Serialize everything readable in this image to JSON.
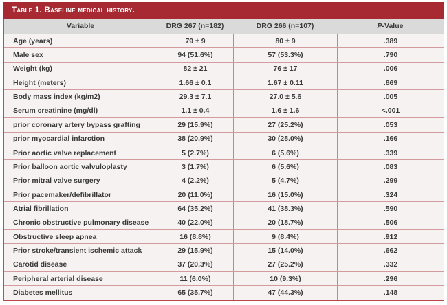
{
  "title": "Table 1. Baseline medical history.",
  "header": {
    "variable": "Variable",
    "drg267": "DRG 267 (n=182)",
    "drg266": "DRG 266 (n=107)",
    "pvalue_prefix": "P",
    "pvalue_suffix": "-Value"
  },
  "chart_data": {
    "type": "table",
    "title": "Table 1. Baseline medical history.",
    "columns": [
      "Variable",
      "DRG 267 (n=182)",
      "DRG 266 (n=107)",
      "P-Value"
    ],
    "rows": [
      {
        "variable": "Age (years)",
        "drg267": "79 ± 9",
        "drg266": "80 ± 9",
        "p": ".389"
      },
      {
        "variable": "Male sex",
        "drg267": "94 (51.6%)",
        "drg266": "57 (53.3%)",
        "p": ".790"
      },
      {
        "variable": "Weight (kg)",
        "drg267": "82 ± 21",
        "drg266": "76 ± 17",
        "p": ".006"
      },
      {
        "variable": "Height (meters)",
        "drg267": "1.66 ± 0.1",
        "drg266": "1.67 ± 0.11",
        "p": ".869"
      },
      {
        "variable": "Body mass index (kg/m2)",
        "drg267": "29.3 ± 7.1",
        "drg266": "27.0 ± 5.6",
        "p": ".005"
      },
      {
        "variable": "Serum creatinine (mg/dl)",
        "drg267": "1.1 ± 0.4",
        "drg266": "1.6 ± 1.6",
        "p": "<.001"
      },
      {
        "variable": "prior coronary artery bypass grafting",
        "drg267": "29 (15.9%)",
        "drg266": "27 (25.2%)",
        "p": ".053"
      },
      {
        "variable": "prior myocardial infarction",
        "drg267": "38 (20.9%)",
        "drg266": "30 (28.0%)",
        "p": ".166"
      },
      {
        "variable": "Prior aortic valve replacement",
        "drg267": "5 (2.7%)",
        "drg266": "6 (5.6%)",
        "p": ".339"
      },
      {
        "variable": "Prior balloon aortic valvuloplasty",
        "drg267": "3 (1.7%)",
        "drg266": "6 (5.6%)",
        "p": ".083"
      },
      {
        "variable": "Prior mitral valve surgery",
        "drg267": "4 (2.2%)",
        "drg266": "5 (4.7%)",
        "p": ".299"
      },
      {
        "variable": "Prior pacemaker/defibrillator",
        "drg267": "20 (11.0%)",
        "drg266": "16 (15.0%)",
        "p": ".324"
      },
      {
        "variable": "Atrial fibrillation",
        "drg267": "64 (35.2%)",
        "drg266": "41 (38.3%)",
        "p": ".590"
      },
      {
        "variable": "Chronic obstructive pulmonary disease",
        "drg267": "40 (22.0%)",
        "drg266": "20 (18.7%)",
        "p": ".506"
      },
      {
        "variable": "Obstructive sleep apnea",
        "drg267": "16 (8.8%)",
        "drg266": "9 (8.4%)",
        "p": ".912"
      },
      {
        "variable": "Prior stroke/transient ischemic attack",
        "drg267": "29 (15.9%)",
        "drg266": "15 (14.0%)",
        "p": ".662"
      },
      {
        "variable": "Carotid disease",
        "drg267": "37 (20.3%)",
        "drg266": "27 (25.2%)",
        "p": ".332"
      },
      {
        "variable": "Peripheral arterial disease",
        "drg267": "11 (6.0%)",
        "drg266": "10 (9.3%)",
        "p": ".296"
      },
      {
        "variable": "Diabetes mellitus",
        "drg267": "65 (35.7%)",
        "drg266": "47 (44.3%)",
        "p": ".148"
      }
    ]
  },
  "colors": {
    "title_bar": "#a72a33",
    "header_row_bg": "#dadada",
    "row_bg": "#f5f2f1",
    "row_border": "#d49a9d",
    "column_border": "#c8868a",
    "outer_border": "#b0565b",
    "bottom_border": "#b8474c",
    "text": "#3a3a3a",
    "title_text": "#ffffff"
  }
}
